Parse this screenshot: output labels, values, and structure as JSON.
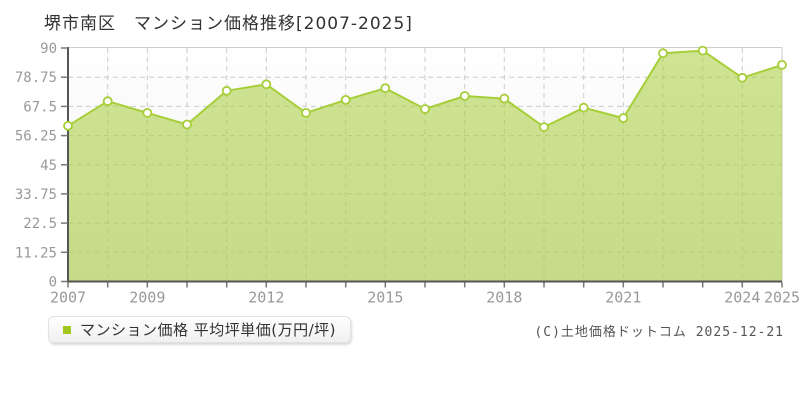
{
  "title": "堺市南区　マンション価格推移[2007-2025]",
  "legend": {
    "label": "マンション価格 平均坪単価(万円/坪)"
  },
  "copyright": "(C)土地価格ドットコム 2025-12-21",
  "colors": {
    "line": "#a6ce39",
    "fill_opacity": 0.55,
    "legend_marker": "#a2c520",
    "grid": "#cccccc",
    "axis": "#555555",
    "tick_color": "#777777",
    "tick_label": "#999999",
    "title_text": "#333333",
    "marker_fill": "#ffffff",
    "plot_bg_top": "#ffffff",
    "plot_bg_bottom": "#ececec"
  },
  "chart_data": {
    "type": "area",
    "title": "堺市南区 マンション価格推移[2007-2025]",
    "x": [
      2007,
      2008,
      2009,
      2010,
      2011,
      2012,
      2013,
      2014,
      2015,
      2016,
      2017,
      2018,
      2019,
      2020,
      2021,
      2022,
      2023,
      2024,
      2025
    ],
    "series": [
      {
        "name": "マンション価格 平均坪単価(万円/坪)",
        "values": [
          60,
          69.5,
          65,
          60.5,
          73.5,
          76,
          65,
          70,
          74.5,
          66.5,
          71.5,
          70.5,
          59.5,
          67,
          63,
          88,
          89,
          78.5,
          83.5
        ]
      }
    ],
    "ylim": [
      0,
      90
    ],
    "yticks": [
      0,
      11.25,
      22.5,
      33.75,
      45,
      56.25,
      67.5,
      78.75,
      90
    ],
    "xtick_labels": [
      2007,
      2009,
      2012,
      2015,
      2018,
      2021,
      2024,
      2025
    ],
    "grid": true,
    "legend_position": "bottom-left",
    "marker": "circle-open"
  }
}
